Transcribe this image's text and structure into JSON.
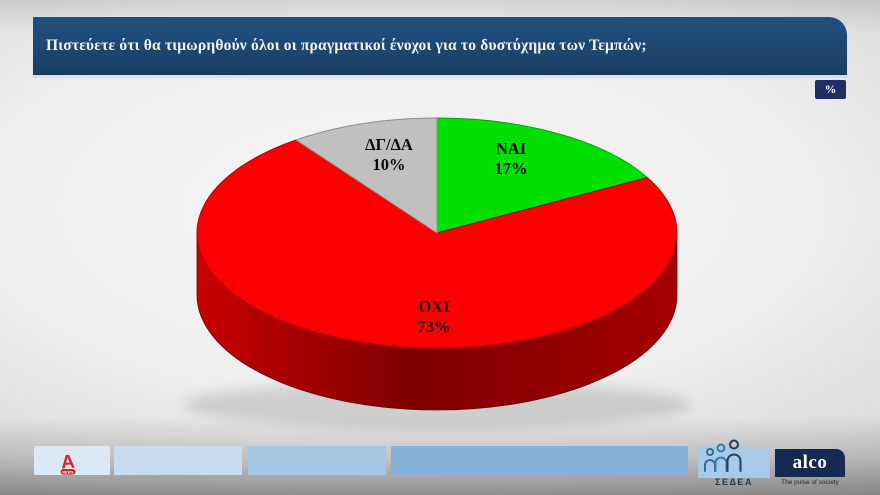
{
  "header": {
    "title": "Πιστεύετε ότι θα τιμωρηθούν όλοι οι πραγματικοί ένοχοι για το δυστύχημα των Τεμπών;",
    "unit_badge": "%"
  },
  "chart_data": {
    "type": "pie",
    "style": "3d",
    "title": "Πιστεύετε ότι θα τιμωρηθούν όλοι οι πραγματικοί ένοχοι για το δυστύχημα των Τεμπών;",
    "unit": "%",
    "categories": [
      "ΝΑΙ",
      "ΟΧΙ",
      "ΔΓ/ΔΑ"
    ],
    "values": [
      17,
      73,
      10
    ],
    "colors": [
      "#00e000",
      "#fa0000",
      "#c0c0c0"
    ],
    "start_angle_deg": 0,
    "direction": "clockwise",
    "labels_on_slices": true,
    "legend_position": "none"
  },
  "slices": [
    {
      "label": "ΝΑΙ",
      "pct": "17%"
    },
    {
      "label": "ΟΧΙ",
      "pct": "73%"
    },
    {
      "label": "ΔΓ/ΔΑ",
      "pct": "10%"
    }
  ],
  "footer": {
    "alpha_logo": {
      "letter": "A",
      "news_label": "NEWS"
    },
    "sedea": {
      "label": "ΣΕΔΕΑ",
      "icon": "three-people-icon"
    },
    "alco": {
      "label": "alco",
      "tagline": "The pulse of society"
    }
  },
  "theme": {
    "title_bar_bg": "#1d4772",
    "unit_badge_bg": "#1f2f66",
    "alco_bg": "#142a52",
    "footer_segment_colors": [
      "#dbe8f5",
      "#c9dcef",
      "#a5c7e6",
      "#86b2d9",
      "#a9c9e9"
    ]
  }
}
